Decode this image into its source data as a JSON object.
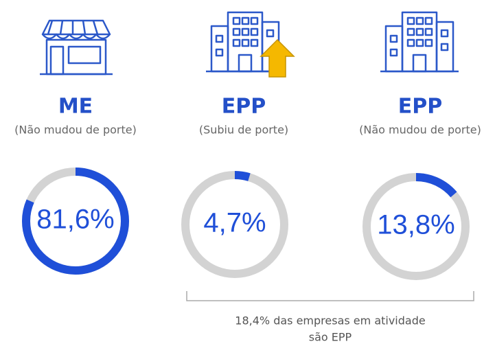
{
  "chart_data": {
    "type": "donut",
    "categories": [
      "ME",
      "EPP",
      "EPP"
    ],
    "subtitles": [
      "(Não mudou de porte)",
      "(Subiu de porte)",
      "(Não mudou de porte)"
    ],
    "values": [
      81.6,
      4.7,
      13.8
    ],
    "value_labels": [
      "81,6%",
      "4,7%",
      "13,8%"
    ],
    "color": "#1f4fd8",
    "track_color": "#d3d3d3",
    "annotation": [
      "18,4% das empresas em atividade",
      "são EPP"
    ]
  }
}
